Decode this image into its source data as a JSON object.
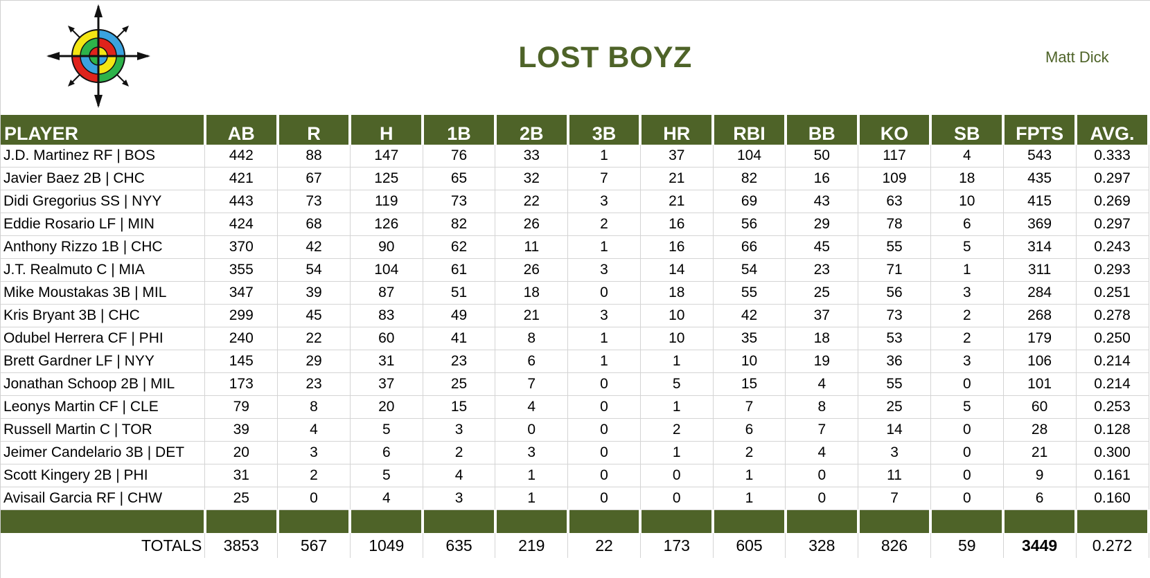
{
  "header": {
    "team_name": "LOST BOYZ",
    "owner_name": "Matt Dick",
    "logo_icon": "compass-target-logo-icon"
  },
  "colors": {
    "header_green": "#4e6328",
    "title_green": "#4e6328"
  },
  "table": {
    "columns": [
      "PLAYER",
      "AB",
      "R",
      "H",
      "1B",
      "2B",
      "3B",
      "HR",
      "RBI",
      "BB",
      "KO",
      "SB",
      "FPTS",
      "AVG."
    ],
    "rows": [
      [
        "J.D. Martinez RF | BOS",
        "442",
        "88",
        "147",
        "76",
        "33",
        "1",
        "37",
        "104",
        "50",
        "117",
        "4",
        "543",
        "0.333"
      ],
      [
        "Javier Baez 2B | CHC",
        "421",
        "67",
        "125",
        "65",
        "32",
        "7",
        "21",
        "82",
        "16",
        "109",
        "18",
        "435",
        "0.297"
      ],
      [
        "Didi Gregorius SS | NYY",
        "443",
        "73",
        "119",
        "73",
        "22",
        "3",
        "21",
        "69",
        "43",
        "63",
        "10",
        "415",
        "0.269"
      ],
      [
        "Eddie Rosario LF | MIN",
        "424",
        "68",
        "126",
        "82",
        "26",
        "2",
        "16",
        "56",
        "29",
        "78",
        "6",
        "369",
        "0.297"
      ],
      [
        "Anthony Rizzo 1B | CHC",
        "370",
        "42",
        "90",
        "62",
        "11",
        "1",
        "16",
        "66",
        "45",
        "55",
        "5",
        "314",
        "0.243"
      ],
      [
        "J.T. Realmuto C | MIA",
        "355",
        "54",
        "104",
        "61",
        "26",
        "3",
        "14",
        "54",
        "23",
        "71",
        "1",
        "311",
        "0.293"
      ],
      [
        "Mike Moustakas 3B | MIL",
        "347",
        "39",
        "87",
        "51",
        "18",
        "0",
        "18",
        "55",
        "25",
        "56",
        "3",
        "284",
        "0.251"
      ],
      [
        "Kris Bryant 3B | CHC",
        "299",
        "45",
        "83",
        "49",
        "21",
        "3",
        "10",
        "42",
        "37",
        "73",
        "2",
        "268",
        "0.278"
      ],
      [
        "Odubel Herrera CF | PHI",
        "240",
        "22",
        "60",
        "41",
        "8",
        "1",
        "10",
        "35",
        "18",
        "53",
        "2",
        "179",
        "0.250"
      ],
      [
        "Brett Gardner LF | NYY",
        "145",
        "29",
        "31",
        "23",
        "6",
        "1",
        "1",
        "10",
        "19",
        "36",
        "3",
        "106",
        "0.214"
      ],
      [
        "Jonathan Schoop 2B | MIL",
        "173",
        "23",
        "37",
        "25",
        "7",
        "0",
        "5",
        "15",
        "4",
        "55",
        "0",
        "101",
        "0.214"
      ],
      [
        "Leonys Martin CF | CLE",
        "79",
        "8",
        "20",
        "15",
        "4",
        "0",
        "1",
        "7",
        "8",
        "25",
        "5",
        "60",
        "0.253"
      ],
      [
        "Russell Martin C | TOR",
        "39",
        "4",
        "5",
        "3",
        "0",
        "0",
        "2",
        "6",
        "7",
        "14",
        "0",
        "28",
        "0.128"
      ],
      [
        "Jeimer Candelario 3B | DET",
        "20",
        "3",
        "6",
        "2",
        "3",
        "0",
        "1",
        "2",
        "4",
        "3",
        "0",
        "21",
        "0.300"
      ],
      [
        "Scott Kingery 2B | PHI",
        "31",
        "2",
        "5",
        "4",
        "1",
        "0",
        "0",
        "1",
        "0",
        "11",
        "0",
        "9",
        "0.161"
      ],
      [
        "Avisail Garcia RF | CHW",
        "25",
        "0",
        "4",
        "3",
        "1",
        "0",
        "0",
        "1",
        "0",
        "7",
        "0",
        "6",
        "0.160"
      ]
    ],
    "totals": [
      "TOTALS",
      "3853",
      "567",
      "1049",
      "635",
      "219",
      "22",
      "173",
      "605",
      "328",
      "826",
      "59",
      "3449",
      "0.272"
    ]
  }
}
